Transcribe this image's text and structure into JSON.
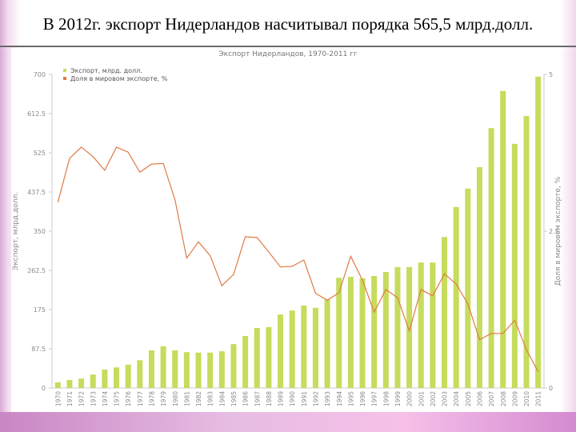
{
  "slide_title": "В 2012г. экспорт Нидерландов насчитывал порядка 565,5 млрд.долл.",
  "chart_data": {
    "type": "bar_line",
    "title": "Экспорт Нидерландов, 1970-2011 гг",
    "y_label": "Экспорт, млрд.долл.",
    "y2_label": "Доля в мировом экспорте, %",
    "categories": [
      "1970",
      "1971",
      "1972",
      "1973",
      "1974",
      "1975",
      "1976",
      "1977",
      "1978",
      "1979",
      "1980",
      "1981",
      "1982",
      "1983",
      "1984",
      "1985",
      "1986",
      "1987",
      "1988",
      "1989",
      "1990",
      "1991",
      "1992",
      "1993",
      "1994",
      "1995",
      "1996",
      "1997",
      "1998",
      "1999",
      "2000",
      "2001",
      "2002",
      "2003",
      "2004",
      "2005",
      "2006",
      "2007",
      "2008",
      "2009",
      "2010",
      "2011"
    ],
    "series": [
      {
        "name": "Экспорт, млрд. долл.",
        "color": "#c6dc5c",
        "kind": "bar",
        "values": [
          12.5,
          18,
          21,
          30,
          41,
          46,
          52,
          62,
          84,
          93,
          84,
          80,
          79,
          79,
          82,
          98,
          116,
          134,
          136,
          164,
          173,
          184,
          179,
          198,
          246,
          248,
          245,
          250,
          259,
          270,
          270,
          280,
          280,
          337,
          404,
          445,
          493,
          580,
          663,
          545,
          607,
          695
        ]
      },
      {
        "name": "Доля в мировом экспорте, %",
        "color": "#e07a45",
        "kind": "line",
        "axis": "y2",
        "values": [
          2.96,
          3.66,
          3.84,
          3.69,
          3.47,
          3.84,
          3.76,
          3.44,
          3.57,
          3.58,
          3.0,
          2.07,
          2.33,
          2.11,
          1.63,
          1.81,
          2.41,
          2.4,
          2.17,
          1.93,
          1.94,
          2.04,
          1.51,
          1.4,
          1.52,
          2.1,
          1.72,
          1.21,
          1.57,
          1.44,
          0.91,
          1.57,
          1.47,
          1.82,
          1.66,
          1.34,
          0.77,
          0.87,
          0.87,
          1.08,
          0.61,
          0.26
        ]
      }
    ],
    "ylim": [
      0,
      700
    ],
    "yticks": [
      0,
      87.5,
      175,
      262.5,
      350,
      437.5,
      525,
      612.5,
      700
    ],
    "y2lim": [
      0,
      5
    ],
    "y2ticks": [
      0,
      2.5,
      5
    ],
    "legend": "top-left"
  }
}
